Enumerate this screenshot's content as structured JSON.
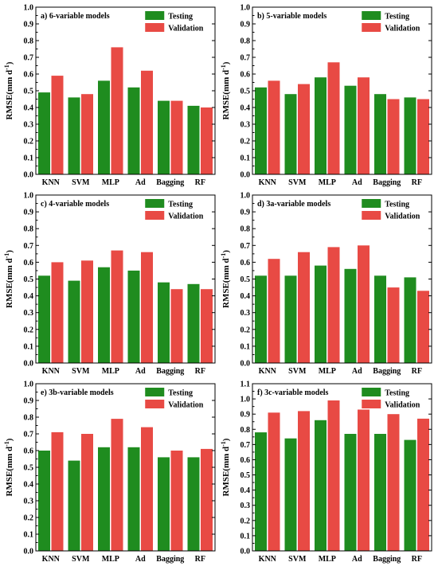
{
  "colors": {
    "testing": "#1f8c1f",
    "validation": "#e84a44"
  },
  "chart_data": [
    {
      "type": "bar",
      "title": "a) 6-variable models",
      "ylabel": "RMSE(mm d",
      "ylabel_sup": "-1",
      "ylabel_close": ")",
      "ylim": [
        0,
        1.0
      ],
      "yticks": [
        "0.0",
        "0.1",
        "0.2",
        "0.3",
        "0.4",
        "0.5",
        "0.6",
        "0.7",
        "0.8",
        "0.9",
        "1.0"
      ],
      "categories": [
        "KNN",
        "SVM",
        "MLP",
        "Ad",
        "Bagging",
        "RF"
      ],
      "series": [
        {
          "name": "Testing",
          "values": [
            0.49,
            0.46,
            0.56,
            0.52,
            0.44,
            0.41
          ]
        },
        {
          "name": "Validation",
          "values": [
            0.59,
            0.48,
            0.76,
            0.62,
            0.44,
            0.4
          ]
        }
      ],
      "legend": "top-right"
    },
    {
      "type": "bar",
      "title": "b) 5-variable models",
      "ylabel": "RMSE(mm d",
      "ylabel_sup": "-1",
      "ylabel_close": ")",
      "ylim": [
        0,
        1.0
      ],
      "yticks": [
        "0.0",
        "0.1",
        "0.2",
        "0.3",
        "0.4",
        "0.5",
        "0.6",
        "0.7",
        "0.8",
        "0.9",
        "1.0"
      ],
      "categories": [
        "KNN",
        "SVM",
        "MLP",
        "Ad",
        "Bagging",
        "RF"
      ],
      "series": [
        {
          "name": "Testing",
          "values": [
            0.52,
            0.48,
            0.58,
            0.53,
            0.48,
            0.46
          ]
        },
        {
          "name": "Validation",
          "values": [
            0.56,
            0.54,
            0.67,
            0.58,
            0.45,
            0.45
          ]
        }
      ],
      "legend": "top-right"
    },
    {
      "type": "bar",
      "title": "c) 4-variable models",
      "ylabel": "RMSE(mm d",
      "ylabel_sup": "-1",
      "ylabel_close": ")",
      "ylim": [
        0,
        1.0
      ],
      "yticks": [
        "0.0",
        "0.1",
        "0.2",
        "0.3",
        "0.4",
        "0.5",
        "0.6",
        "0.7",
        "0.8",
        "0.9",
        "1.0"
      ],
      "categories": [
        "KNN",
        "SVM",
        "MLP",
        "Ad",
        "Bagging",
        "RF"
      ],
      "series": [
        {
          "name": "Testing",
          "values": [
            0.52,
            0.49,
            0.57,
            0.55,
            0.48,
            0.47
          ]
        },
        {
          "name": "Validation",
          "values": [
            0.6,
            0.61,
            0.67,
            0.66,
            0.44,
            0.44
          ]
        }
      ],
      "legend": "top-right"
    },
    {
      "type": "bar",
      "title": "d) 3a-variable models",
      "ylabel": "RMSE(mm d",
      "ylabel_sup": "-1",
      "ylabel_close": ")",
      "ylim": [
        0,
        1.0
      ],
      "yticks": [
        "0.0",
        "0.1",
        "0.2",
        "0.3",
        "0.4",
        "0.5",
        "0.6",
        "0.7",
        "0.8",
        "0.9",
        "1.0"
      ],
      "categories": [
        "KNN",
        "SVM",
        "MLP",
        "Ad",
        "Bagging",
        "RF"
      ],
      "series": [
        {
          "name": "Testing",
          "values": [
            0.52,
            0.52,
            0.58,
            0.56,
            0.52,
            0.51
          ]
        },
        {
          "name": "Validation",
          "values": [
            0.62,
            0.66,
            0.69,
            0.7,
            0.45,
            0.43
          ]
        }
      ],
      "legend": "top-right"
    },
    {
      "type": "bar",
      "title": "e) 3b-variable models",
      "ylabel": "RMSE(mm d",
      "ylabel_sup": "-1",
      "ylabel_close": ")",
      "ylim": [
        0,
        1.0
      ],
      "yticks": [
        "0.0",
        "0.1",
        "0.2",
        "0.3",
        "0.4",
        "0.5",
        "0.6",
        "0.7",
        "0.8",
        "0.9",
        "1.0"
      ],
      "categories": [
        "KNN",
        "SVM",
        "MLP",
        "Ad",
        "Bagging",
        "RF"
      ],
      "series": [
        {
          "name": "Testing",
          "values": [
            0.6,
            0.54,
            0.62,
            0.62,
            0.56,
            0.56
          ]
        },
        {
          "name": "Validation",
          "values": [
            0.71,
            0.7,
            0.79,
            0.74,
            0.6,
            0.61
          ]
        }
      ],
      "legend": "top-right"
    },
    {
      "type": "bar",
      "title": "f) 3c-variable models",
      "ylabel": "RMSE(mm d",
      "ylabel_sup": "-1",
      "ylabel_close": ")",
      "ylim": [
        0,
        1.1
      ],
      "yticks": [
        "0.0",
        "0.1",
        "0.2",
        "0.3",
        "0.4",
        "0.5",
        "0.6",
        "0.7",
        "0.8",
        "0.9",
        "1.0",
        "1.1"
      ],
      "categories": [
        "KNN",
        "SVM",
        "MLP",
        "Ad",
        "Bagging",
        "RF"
      ],
      "series": [
        {
          "name": "Testing",
          "values": [
            0.78,
            0.74,
            0.86,
            0.77,
            0.77,
            0.73
          ]
        },
        {
          "name": "Validation",
          "values": [
            0.91,
            0.92,
            0.99,
            0.93,
            0.9,
            0.87
          ]
        }
      ],
      "legend": "top-right"
    }
  ]
}
